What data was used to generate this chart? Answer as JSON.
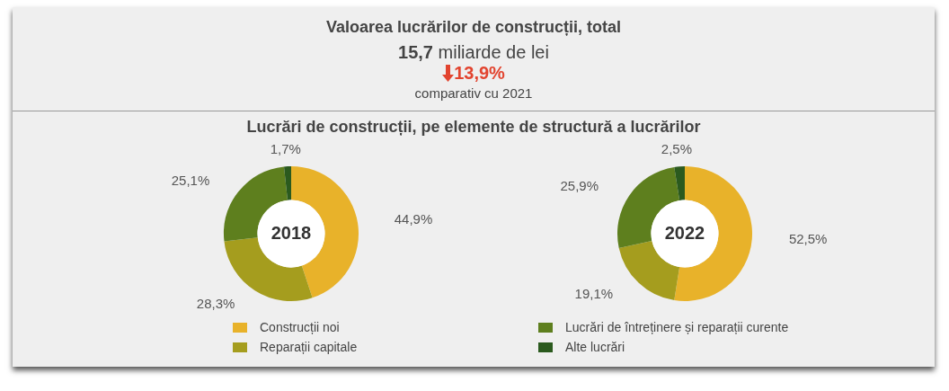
{
  "chart_data": [
    {
      "type": "other",
      "title": "Valoarea lucrărilor de construcții, total",
      "subtitle": "Lucrări de construcții, pe elemente de structură a lucrărilor",
      "annotations": [
        "15,7 miliarde de lei",
        "13,9%",
        "comparativ cu 2021"
      ]
    },
    {
      "type": "donut",
      "annotations": [
        "2018"
      ],
      "categories": [
        "Construcții noi",
        "Reparații capitale",
        "Lucrări de întreținere și reparații curente",
        "Alte lucrări"
      ],
      "values": [
        44.9,
        28.3,
        25.1,
        1.7
      ],
      "colors": [
        "#e8b22a",
        "#a59d1e",
        "#5e7f1e",
        "#2b5a1e"
      ],
      "value_labels": [
        "44,9%",
        "28,3%",
        "25,1%",
        "1,7%"
      ],
      "legend": "bottom"
    },
    {
      "type": "donut",
      "annotations": [
        "2022"
      ],
      "categories": [
        null,
        null,
        null,
        null
      ],
      "values": [
        52.5,
        19.1,
        25.9,
        2.5
      ],
      "colors": [
        "#e8b22a",
        "#a59d1e",
        "#5e7f1e",
        "#2b5a1e"
      ],
      "value_labels": [
        "52,5%",
        "19,1%",
        "25,9%",
        "2,5%"
      ]
    }
  ]
}
